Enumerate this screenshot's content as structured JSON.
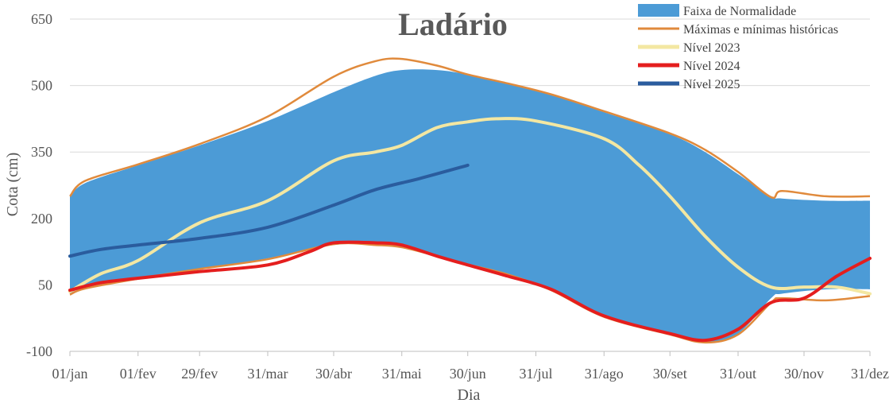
{
  "chart_data": {
    "type": "area",
    "title": "Ladário",
    "xlabel": "Dia",
    "ylabel": "Cota (cm)",
    "ylim": [
      -100,
      650
    ],
    "yticks": [
      -100,
      50,
      200,
      350,
      500,
      650
    ],
    "xlim": [
      1,
      365
    ],
    "x_ticks": [
      {
        "day": 1,
        "label": "01/jan"
      },
      {
        "day": 32,
        "label": "01/fev"
      },
      {
        "day": 60,
        "label": "29/fev"
      },
      {
        "day": 91,
        "label": "31/mar"
      },
      {
        "day": 121,
        "label": "30/abr"
      },
      {
        "day": 152,
        "label": "31/mai"
      },
      {
        "day": 182,
        "label": "30/jun"
      },
      {
        "day": 213,
        "label": "31/jul"
      },
      {
        "day": 244,
        "label": "31/ago"
      },
      {
        "day": 274,
        "label": "30/set"
      },
      {
        "day": 305,
        "label": "31/out"
      },
      {
        "day": 335,
        "label": "30/nov"
      },
      {
        "day": 366,
        "label": "31/dez"
      }
    ],
    "grid": true,
    "legend_position": "top-right",
    "normal_band": {
      "name": "Faixa de Normalidade",
      "color": "#4c9bd6",
      "x": [
        1,
        8,
        32,
        60,
        91,
        121,
        140,
        152,
        168,
        182,
        200,
        220,
        244,
        274,
        290,
        305,
        320,
        325,
        345,
        365
      ],
      "upper": [
        250,
        280,
        320,
        365,
        420,
        485,
        522,
        535,
        535,
        525,
        505,
        480,
        440,
        390,
        350,
        300,
        250,
        245,
        240,
        240
      ],
      "lower": [
        30,
        45,
        65,
        85,
        110,
        140,
        140,
        135,
        115,
        95,
        75,
        40,
        -20,
        -60,
        -80,
        -60,
        20,
        30,
        40,
        40
      ]
    },
    "series": [
      {
        "name": "Máximas e mínimas históricas",
        "color": "#e08a3c",
        "x": [
          1,
          8,
          32,
          60,
          91,
          121,
          140,
          152,
          168,
          182,
          200,
          220,
          244,
          274,
          290,
          305,
          320,
          325,
          345,
          365
        ],
        "upper": [
          250,
          285,
          322,
          368,
          430,
          520,
          555,
          560,
          545,
          525,
          505,
          480,
          442,
          392,
          355,
          305,
          248,
          262,
          250,
          250
        ],
        "lower": [
          28,
          42,
          64,
          86,
          108,
          142,
          140,
          135,
          115,
          96,
          74,
          38,
          -22,
          -62,
          -80,
          -62,
          10,
          20,
          15,
          25
        ]
      },
      {
        "name": "Nível 2023",
        "color": "#f3e7a2",
        "x": [
          1,
          15,
          32,
          60,
          91,
          121,
          140,
          152,
          168,
          182,
          195,
          213,
          244,
          260,
          274,
          290,
          305,
          320,
          335,
          350,
          365
        ],
        "y": [
          35,
          75,
          105,
          190,
          240,
          330,
          350,
          365,
          405,
          418,
          425,
          420,
          380,
          320,
          250,
          160,
          90,
          45,
          45,
          45,
          30
        ]
      },
      {
        "name": "Nível 2024",
        "color": "#e41e1e",
        "x": [
          1,
          15,
          32,
          60,
          91,
          110,
          121,
          140,
          152,
          168,
          182,
          200,
          220,
          244,
          274,
          290,
          305,
          320,
          335,
          350,
          365
        ],
        "y": [
          38,
          55,
          65,
          80,
          95,
          125,
          145,
          145,
          140,
          115,
          95,
          70,
          40,
          -20,
          -60,
          -75,
          -50,
          10,
          20,
          70,
          110
        ]
      },
      {
        "name": "Nível 2025",
        "color": "#2a5c9e",
        "x": [
          1,
          15,
          32,
          60,
          91,
          121,
          140,
          160,
          182
        ],
        "y": [
          115,
          130,
          140,
          155,
          180,
          230,
          265,
          290,
          320
        ]
      }
    ]
  }
}
